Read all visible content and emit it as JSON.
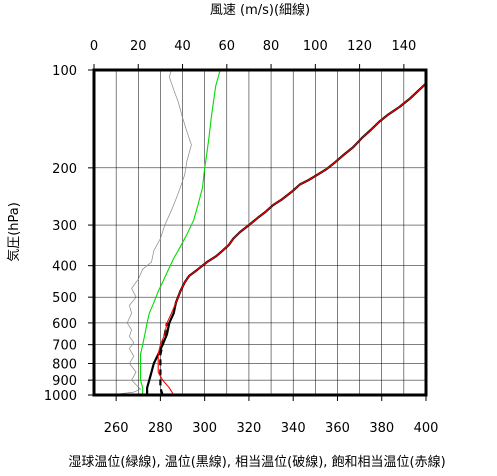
{
  "chart_data": {
    "type": "line",
    "title": "",
    "top_axis": {
      "label": "風速 (m/s)(細線)",
      "range": [
        0,
        150
      ],
      "ticks": [
        0,
        20,
        40,
        60,
        80,
        100,
        120,
        140
      ]
    },
    "bottom_axis": {
      "label": "湿球温位(緑線), 温位(黒線), 相当温位(破線), 飽和相当温位(赤線)",
      "range": [
        250,
        400
      ],
      "ticks": [
        260,
        280,
        300,
        320,
        340,
        360,
        380,
        400
      ]
    },
    "y_axis": {
      "label": "気圧(hPa)",
      "scale": "log",
      "reversed": true,
      "range": [
        100,
        1000
      ],
      "ticks": [
        100,
        200,
        300,
        400,
        500,
        600,
        700,
        800,
        900,
        1000
      ]
    },
    "grid": true,
    "series": [
      {
        "name": "湿球温位(緑線)",
        "color": "#00dd00",
        "axis": "bottom",
        "style": "solid",
        "points": [
          [
            272,
            990
          ],
          [
            272,
            950
          ],
          [
            271,
            900
          ],
          [
            271,
            850
          ],
          [
            271,
            800
          ],
          [
            271,
            750
          ],
          [
            272,
            700
          ],
          [
            273,
            650
          ],
          [
            274,
            600
          ],
          [
            275,
            560
          ],
          [
            277,
            520
          ],
          [
            279,
            480
          ],
          [
            281,
            450
          ],
          [
            283,
            420
          ],
          [
            286,
            380
          ],
          [
            289,
            350
          ],
          [
            292,
            320
          ],
          [
            295,
            290
          ],
          [
            297,
            260
          ],
          [
            299,
            230
          ],
          [
            300,
            200
          ],
          [
            301,
            180
          ],
          [
            302,
            160
          ],
          [
            303,
            140
          ],
          [
            304,
            125
          ],
          [
            305,
            112
          ],
          [
            307,
            100
          ]
        ]
      },
      {
        "name": "温位(黒線)",
        "color": "#000000",
        "axis": "bottom",
        "style": "solid",
        "points": [
          [
            274,
            1000
          ],
          [
            274,
            950
          ],
          [
            275,
            900
          ],
          [
            276,
            850
          ],
          [
            277,
            800
          ],
          [
            279,
            750
          ],
          [
            281,
            700
          ],
          [
            283,
            650
          ],
          [
            284,
            600
          ],
          [
            286,
            560
          ],
          [
            287,
            520
          ],
          [
            289,
            480
          ],
          [
            291,
            450
          ],
          [
            293,
            430
          ],
          [
            297,
            410
          ],
          [
            301,
            390
          ],
          [
            305,
            375
          ],
          [
            308,
            360
          ],
          [
            311,
            345
          ],
          [
            313,
            330
          ],
          [
            316,
            315
          ],
          [
            320,
            300
          ],
          [
            324,
            285
          ],
          [
            327,
            275
          ],
          [
            331,
            260
          ],
          [
            335,
            250
          ],
          [
            340,
            235
          ],
          [
            343,
            225
          ],
          [
            347,
            218
          ],
          [
            351,
            210
          ],
          [
            355,
            202
          ],
          [
            359,
            192
          ],
          [
            363,
            182
          ],
          [
            367,
            173
          ],
          [
            371,
            162
          ],
          [
            375,
            153
          ],
          [
            379,
            144
          ],
          [
            383,
            137
          ],
          [
            388,
            130
          ],
          [
            393,
            122
          ],
          [
            397,
            115
          ],
          [
            400,
            110
          ]
        ]
      },
      {
        "name": "相当温位(破線)",
        "color": "#000000",
        "axis": "bottom",
        "style": "dashed",
        "points": [
          [
            281,
            1000
          ],
          [
            280,
            950
          ],
          [
            280,
            900
          ],
          [
            280,
            850
          ],
          [
            280,
            800
          ],
          [
            280,
            750
          ],
          [
            281,
            700
          ],
          [
            282,
            650
          ],
          [
            283,
            600
          ]
        ]
      },
      {
        "name": "飽和相当温位(赤線)",
        "color": "#ff0000",
        "axis": "bottom",
        "style": "solid",
        "points": [
          [
            286,
            1000
          ],
          [
            284,
            950
          ],
          [
            281,
            900
          ],
          [
            279,
            850
          ],
          [
            279,
            800
          ],
          [
            279,
            750
          ],
          [
            280,
            700
          ],
          [
            282,
            650
          ],
          [
            283,
            600
          ],
          [
            285,
            560
          ],
          [
            287,
            520
          ],
          [
            289,
            480
          ],
          [
            291,
            450
          ],
          [
            293,
            430
          ],
          [
            297,
            410
          ],
          [
            301,
            390
          ],
          [
            305,
            375
          ],
          [
            308,
            360
          ],
          [
            311,
            345
          ],
          [
            313,
            330
          ],
          [
            316,
            315
          ],
          [
            320,
            300
          ],
          [
            324,
            285
          ],
          [
            327,
            275
          ],
          [
            331,
            260
          ],
          [
            335,
            250
          ],
          [
            340,
            235
          ],
          [
            343,
            225
          ],
          [
            347,
            218
          ],
          [
            351,
            210
          ],
          [
            355,
            202
          ],
          [
            359,
            192
          ],
          [
            363,
            182
          ],
          [
            367,
            173
          ],
          [
            371,
            162
          ],
          [
            375,
            153
          ],
          [
            379,
            144
          ],
          [
            383,
            137
          ],
          [
            388,
            130
          ],
          [
            393,
            122
          ],
          [
            397,
            115
          ],
          [
            400,
            110
          ]
        ]
      },
      {
        "name": "風速(細線)",
        "color": "#888888",
        "axis": "top",
        "style": "solid",
        "points": [
          [
            7,
            1000
          ],
          [
            18,
            980
          ],
          [
            21,
            960
          ],
          [
            17,
            900
          ],
          [
            19,
            850
          ],
          [
            16,
            800
          ],
          [
            18,
            760
          ],
          [
            16,
            720
          ],
          [
            18,
            690
          ],
          [
            16,
            660
          ],
          [
            17,
            630
          ],
          [
            15,
            600
          ],
          [
            17,
            560
          ],
          [
            16,
            530
          ],
          [
            19,
            500
          ],
          [
            17,
            470
          ],
          [
            20,
            440
          ],
          [
            22,
            410
          ],
          [
            26,
            390
          ],
          [
            27,
            360
          ],
          [
            30,
            330
          ],
          [
            32,
            300
          ],
          [
            35,
            270
          ],
          [
            37,
            250
          ],
          [
            39,
            230
          ],
          [
            41,
            210
          ],
          [
            42,
            190
          ],
          [
            44,
            170
          ],
          [
            42,
            155
          ],
          [
            40,
            140
          ],
          [
            38,
            125
          ],
          [
            36,
            115
          ],
          [
            34,
            105
          ],
          [
            35,
            100
          ]
        ]
      }
    ]
  }
}
